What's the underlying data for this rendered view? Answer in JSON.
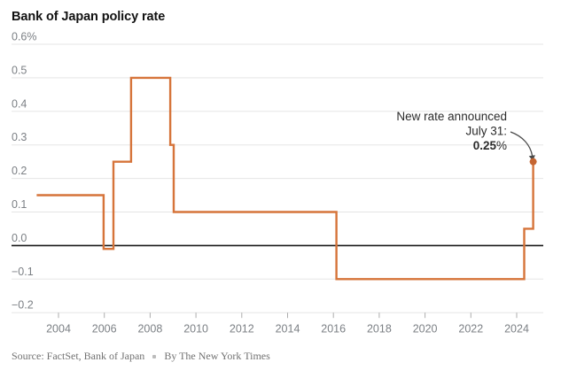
{
  "title": "Bank of Japan policy rate",
  "footer": {
    "source": "Source: FactSet, Bank of Japan",
    "byline": "By The New York Times"
  },
  "colors": {
    "line": "#d6743a",
    "dot": "#c56531",
    "grid": "#e5e5e5",
    "zero_line": "#1a1a1a",
    "axis_label": "#7c8085",
    "tick": "#adadad",
    "annotation_text": "#2b2b2b",
    "arrow": "#4a4a4a"
  },
  "chart_data": {
    "type": "line",
    "subtype": "step",
    "title": "Bank of Japan policy rate",
    "xlabel": "",
    "ylabel": "",
    "xlim": [
      2003,
      2025
    ],
    "ylim": [
      -0.2,
      0.6
    ],
    "grid": true,
    "y_ticks": [
      {
        "value": 0.6,
        "label": "0.6%"
      },
      {
        "value": 0.5,
        "label": "0.5"
      },
      {
        "value": 0.4,
        "label": "0.4"
      },
      {
        "value": 0.3,
        "label": "0.3"
      },
      {
        "value": 0.2,
        "label": "0.2"
      },
      {
        "value": 0.1,
        "label": "0.1"
      },
      {
        "value": 0.0,
        "label": "0.0"
      },
      {
        "value": -0.1,
        "label": "−0.1"
      },
      {
        "value": -0.2,
        "label": "−0.2"
      }
    ],
    "x_ticks": [
      {
        "value": 2004,
        "label": "2004"
      },
      {
        "value": 2006,
        "label": "2006"
      },
      {
        "value": 2008,
        "label": "2008"
      },
      {
        "value": 2010,
        "label": "2010"
      },
      {
        "value": 2012,
        "label": "2012"
      },
      {
        "value": 2014,
        "label": "2014"
      },
      {
        "value": 2016,
        "label": "2016"
      },
      {
        "value": 2018,
        "label": "2018"
      },
      {
        "value": 2020,
        "label": "2020"
      },
      {
        "value": 2022,
        "label": "2022"
      },
      {
        "value": 2024,
        "label": "2024"
      }
    ],
    "series": [
      {
        "name": "Bank of Japan policy rate (%)",
        "points": [
          [
            2003.05,
            0.15
          ],
          [
            2005.97,
            0.15
          ],
          [
            2005.97,
            -0.01
          ],
          [
            2006.4,
            -0.01
          ],
          [
            2006.4,
            0.25
          ],
          [
            2007.17,
            0.25
          ],
          [
            2007.17,
            0.5
          ],
          [
            2008.88,
            0.5
          ],
          [
            2008.88,
            0.3
          ],
          [
            2009.03,
            0.3
          ],
          [
            2009.03,
            0.1
          ],
          [
            2016.13,
            0.1
          ],
          [
            2016.13,
            -0.1
          ],
          [
            2024.33,
            -0.1
          ],
          [
            2024.33,
            0.05
          ],
          [
            2024.72,
            0.05
          ],
          [
            2024.72,
            0.25
          ]
        ]
      }
    ],
    "endpoint": {
      "x": 2024.72,
      "y": 0.25
    },
    "annotation": {
      "line1": "New rate announced",
      "line2": "July 31:",
      "value": "0.25",
      "value_suffix": "%"
    }
  }
}
